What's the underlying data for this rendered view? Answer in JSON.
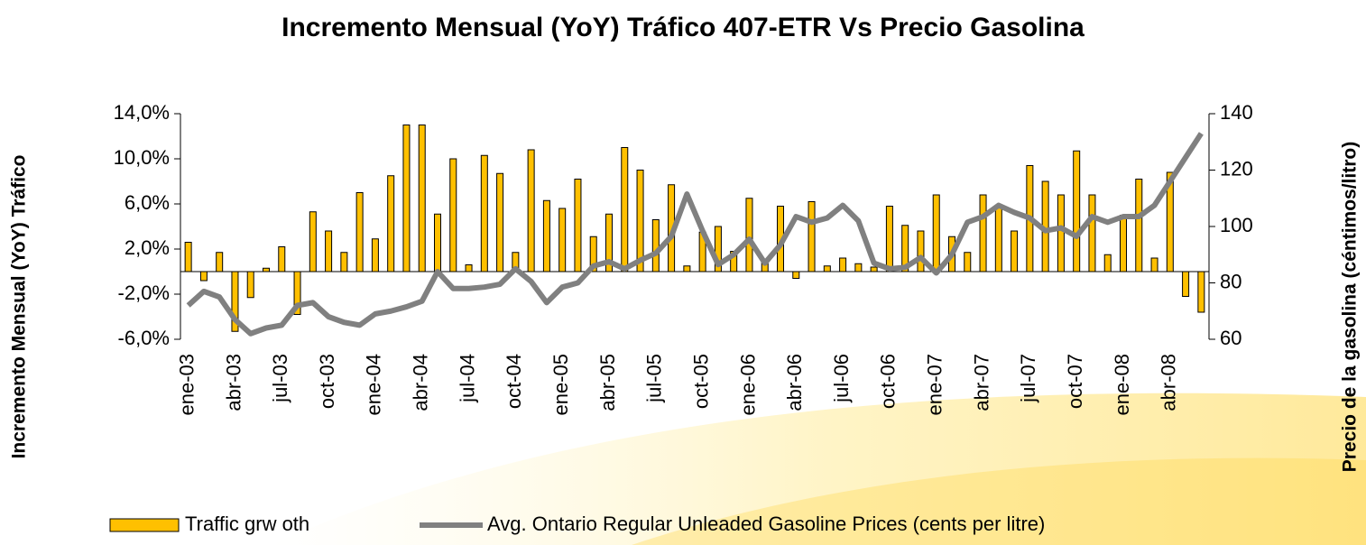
{
  "chart_data": {
    "type": "bar_line",
    "title": "Incremento Mensual (YoY) Tráfico 407-ETR Vs Precio Gasolina",
    "y_label": "Incremento Mensual (YoY) Tráfico",
    "y2_label": "Precio de la gasolina (céntimos/litro)",
    "categories": [
      "ene-03",
      null,
      null,
      "abr-03",
      null,
      null,
      "jul-03",
      null,
      null,
      "oct-03",
      null,
      null,
      "ene-04",
      null,
      null,
      "abr-04",
      null,
      null,
      "jul-04",
      null,
      null,
      "oct-04",
      null,
      null,
      "ene-05",
      null,
      null,
      "abr-05",
      null,
      null,
      "jul-05",
      null,
      null,
      "oct-05",
      null,
      null,
      "ene-06",
      null,
      null,
      "abr-06",
      null,
      null,
      "jul-06",
      null,
      null,
      "oct-06",
      null,
      null,
      "ene-07",
      null,
      null,
      "abr-07",
      null,
      null,
      "jul-07",
      null,
      null,
      "oct-07",
      null,
      null,
      "ene-08",
      null,
      null,
      "abr-08",
      null,
      null
    ],
    "series": [
      {
        "name": "Traffic grw oth",
        "type": "bar",
        "axis": "y",
        "color": "#ffc000",
        "values": [
          2.6,
          -0.8,
          1.7,
          -5.3,
          -2.3,
          0.3,
          2.2,
          -3.8,
          5.3,
          3.6,
          1.7,
          7.0,
          2.9,
          8.5,
          13.0,
          13.0,
          5.1,
          10.0,
          0.6,
          10.3,
          8.7,
          1.7,
          10.8,
          6.3,
          5.6,
          8.2,
          3.1,
          5.1,
          11.0,
          9.0,
          4.6,
          7.7,
          0.5,
          3.5,
          4.0,
          1.8,
          6.5,
          1.0,
          5.8,
          -0.6,
          6.2,
          0.5,
          1.2,
          0.7,
          0.4,
          5.8,
          4.1,
          3.6,
          6.8,
          3.1,
          1.7,
          6.8,
          5.8,
          3.6,
          9.4,
          8.0,
          6.8,
          10.7,
          6.8,
          1.5,
          5.0,
          8.2,
          1.2,
          8.8,
          -2.2,
          -3.6
        ]
      },
      {
        "name": "Avg. Ontario Regular Unleaded Gasoline Prices (cents per litre)",
        "type": "line",
        "axis": "y2",
        "color": "#808080",
        "values": [
          72,
          77,
          75,
          67,
          62,
          64,
          65,
          72,
          73,
          68,
          66,
          65,
          69,
          70,
          71.5,
          73.5,
          84,
          78,
          78,
          78.5,
          79.5,
          85,
          80.5,
          73,
          78.5,
          80,
          86,
          87.5,
          85,
          88,
          90.5,
          96.5,
          111.5,
          98.5,
          86.5,
          90,
          95.5,
          87,
          93.5,
          103.5,
          101.5,
          103,
          107.5,
          102,
          87,
          85,
          85.5,
          89,
          83.5,
          90,
          101.5,
          103.5,
          107.5,
          105,
          103,
          98.5,
          99.5,
          96.5,
          103.5,
          101.5,
          103.5,
          103.5,
          107.5,
          116,
          124.5,
          133
        ]
      }
    ],
    "ylim": [
      -6,
      14
    ],
    "yticks": [
      {
        "value": 14,
        "label": "14,0%"
      },
      {
        "value": 10,
        "label": "10,0%"
      },
      {
        "value": 6,
        "label": "6,0%"
      },
      {
        "value": 2,
        "label": "2,0%"
      },
      {
        "value": -2,
        "label": "-2,0%"
      },
      {
        "value": -6,
        "label": "-6,0%"
      }
    ],
    "y2lim": [
      60,
      140
    ],
    "y2ticks": [
      140,
      120,
      100,
      80,
      60
    ],
    "legend": "bottom"
  }
}
